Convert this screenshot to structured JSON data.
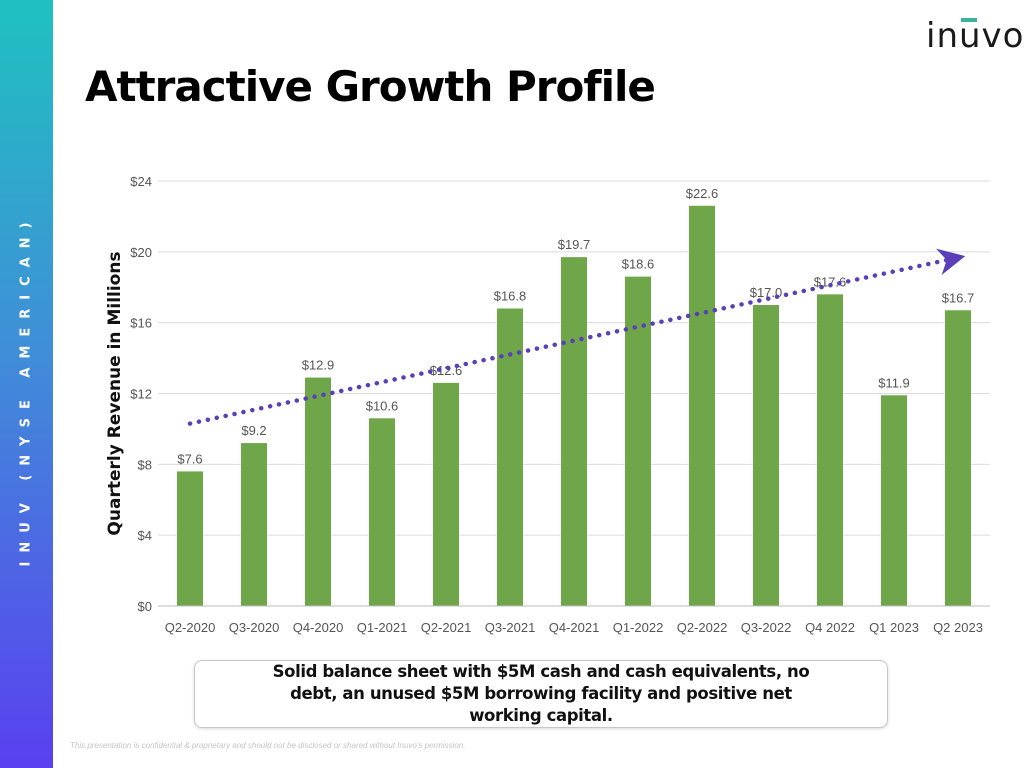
{
  "sidebar": {
    "text": "INUV (NYSE AMERICAN)"
  },
  "logo": {
    "text": "inuvo"
  },
  "title": "Attractive Growth Profile",
  "chart_data": {
    "type": "bar",
    "title": "",
    "xlabel": "",
    "ylabel": "Quarterly Revenue in Millions",
    "categories": [
      "Q2-2020",
      "Q3-2020",
      "Q4-2020",
      "Q1-2021",
      "Q2-2021",
      "Q3-2021",
      "Q4-2021",
      "Q1-2022",
      "Q2-2022",
      "Q3-2022",
      "Q4 2022",
      "Q1 2023",
      "Q2 2023"
    ],
    "values": [
      7.6,
      9.2,
      12.9,
      10.6,
      12.6,
      16.8,
      19.7,
      18.6,
      22.6,
      17.0,
      17.6,
      11.9,
      16.7
    ],
    "data_labels": [
      "$7.6",
      "$9.2",
      "$12.9",
      "$10.6",
      "$12.6",
      "$16.8",
      "$19.7",
      "$18.6",
      "$22.6",
      "$17.0",
      "$17.6",
      "$11.9",
      "$16.7"
    ],
    "yticks": [
      0,
      4,
      8,
      12,
      16,
      20,
      24
    ],
    "ytick_labels": [
      "$0",
      "$4",
      "$8",
      "$12",
      "$16",
      "$20",
      "$24"
    ],
    "ylim": [
      0,
      24
    ],
    "grid": true,
    "bar_color": "#6fa64a",
    "trendline": {
      "style": "dotted",
      "color": "#5a3fb8",
      "arrow": true,
      "start_value": 10.3,
      "end_value": 19.6
    }
  },
  "note": "Solid balance sheet with $5M cash and cash equivalents, no debt, an unused $5M borrowing facility and positive net working capital.",
  "footer": "This presentation is confidential & proprietary and should not be disclosed or shared without Inuvo's permission."
}
